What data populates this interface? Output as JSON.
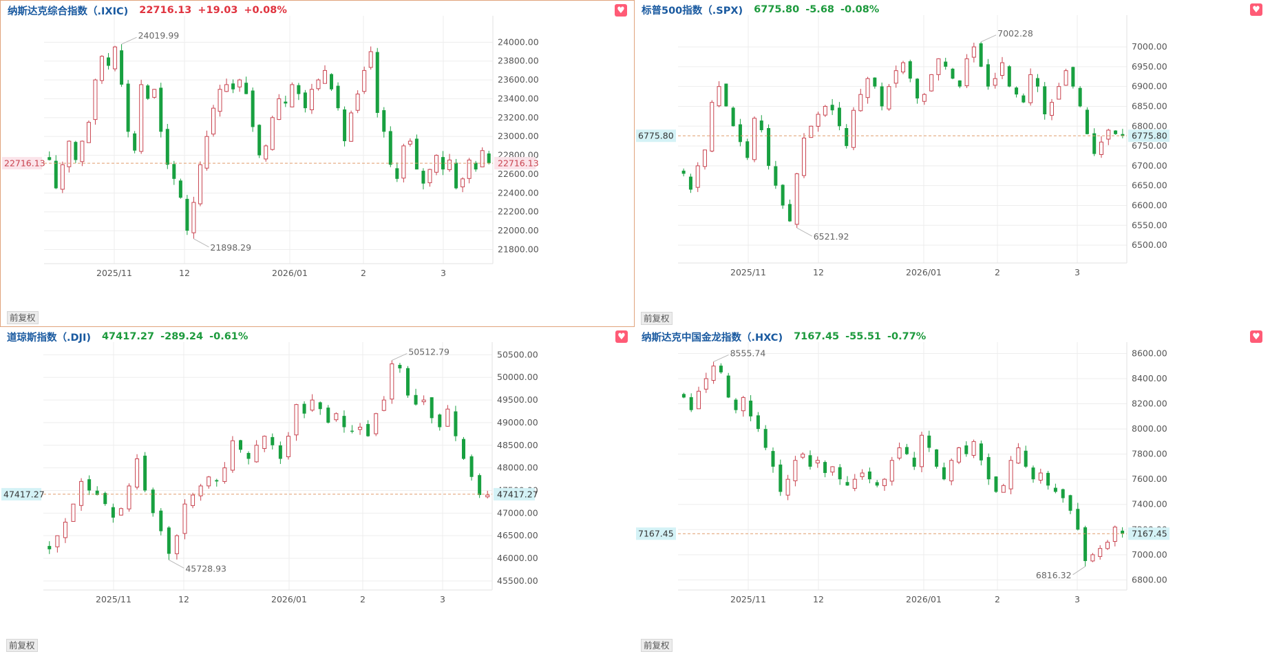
{
  "colors": {
    "up": "#c8424e",
    "down": "#18a040",
    "grid": "#ededed",
    "ref": "#e09b6a",
    "header_blue": "#1a5aa0"
  },
  "icons": {
    "favorite": "heart-icon"
  },
  "panels": [
    {
      "name": "纳斯达克综合指数（.IXIC)",
      "price": "22716.13",
      "change": "+19.03",
      "pct": "+0.08%",
      "direction": "up",
      "adjust_label": "前复权",
      "chart_data": {
        "type": "candlestick",
        "x_ticks": [
          "2025/11",
          "12",
          "2026/01",
          "2",
          "3"
        ],
        "y_ticks": [
          "24000.00",
          "23800.00",
          "23600.00",
          "23400.00",
          "23200.00",
          "23000.00",
          "22800.00",
          "22600.00",
          "22400.00",
          "22200.00",
          "22000.00",
          "21800.00"
        ],
        "ylim": [
          21650,
          24280
        ],
        "last_price": "22716.13",
        "high_annotation": "24019.99",
        "low_annotation": "21898.29",
        "grid": true,
        "path": [
          22750,
          22450,
          22700,
          22950,
          22750,
          22950,
          23150,
          23600,
          23850,
          23750,
          23950,
          23550,
          23050,
          22850,
          23550,
          23400,
          23500,
          23050,
          22700,
          22550,
          22350,
          22000,
          22300,
          22700,
          23000,
          23300,
          23500,
          23550,
          23500,
          23600,
          23450,
          23100,
          22800,
          22900,
          23200,
          23400,
          23350,
          23550,
          23450,
          23300,
          23500,
          23600,
          23700,
          23500,
          23300,
          22950,
          23250,
          23450,
          23700,
          23900,
          23250,
          23050,
          22700,
          22550,
          22900,
          22950,
          22650,
          22500,
          22650,
          22800,
          22650,
          22750,
          22450,
          22550,
          22750,
          22650,
          22850,
          22716
        ]
      }
    },
    {
      "name": "标普500指数（.SPX)",
      "price": "6775.80",
      "change": "-5.68",
      "pct": "-0.08%",
      "direction": "down",
      "adjust_label": "前复权",
      "chart_data": {
        "type": "candlestick",
        "x_ticks": [
          "2025/11",
          "12",
          "2026/01",
          "2",
          "3"
        ],
        "y_ticks": [
          "7000.00",
          "6950.00",
          "6900.00",
          "6850.00",
          "6800.00",
          "6750.00",
          "6700.00",
          "6650.00",
          "6600.00",
          "6550.00",
          "6500.00"
        ],
        "ylim": [
          6455,
          7080
        ],
        "last_price": "6775.80",
        "high_annotation": "7002.28",
        "low_annotation": "6521.92",
        "grid": true,
        "path": [
          6680,
          6640,
          6700,
          6740,
          6860,
          6900,
          6850,
          6800,
          6760,
          6720,
          6820,
          6790,
          6700,
          6650,
          6600,
          6560,
          6680,
          6770,
          6800,
          6830,
          6850,
          6840,
          6800,
          6750,
          6840,
          6880,
          6920,
          6900,
          6850,
          6900,
          6940,
          6960,
          6920,
          6870,
          6880,
          6930,
          6970,
          6950,
          6920,
          6900,
          6970,
          7000,
          6950,
          6900,
          6920,
          6960,
          6900,
          6880,
          6860,
          6930,
          6900,
          6830,
          6860,
          6900,
          6940,
          6900,
          6850,
          6780,
          6730,
          6760,
          6790,
          6780,
          6775
        ]
      }
    },
    {
      "name": "道琼斯指数（.DJI)",
      "price": "47417.27",
      "change": "-289.24",
      "pct": "-0.61%",
      "direction": "down",
      "adjust_label": "前复权",
      "chart_data": {
        "type": "candlestick",
        "x_ticks": [
          "2025/11",
          "12",
          "2026/01",
          "2",
          "3"
        ],
        "y_ticks": [
          "50500.00",
          "50000.00",
          "49500.00",
          "49000.00",
          "48500.00",
          "48000.00",
          "47500.00",
          "47000.00",
          "46500.00",
          "46000.00",
          "45500.00"
        ],
        "ylim": [
          45300,
          50780
        ],
        "last_price": "47417.27",
        "high_annotation": "50512.79",
        "low_annotation": "45728.93",
        "grid": true,
        "path": [
          46200,
          46500,
          46800,
          47200,
          47700,
          47500,
          47400,
          47200,
          46900,
          47100,
          47600,
          48200,
          47500,
          47000,
          46600,
          46100,
          46500,
          47200,
          47400,
          47600,
          47800,
          47700,
          48000,
          48600,
          48400,
          48200,
          48500,
          48700,
          48500,
          48200,
          48700,
          49400,
          49200,
          49500,
          49300,
          49000,
          49200,
          48900,
          48800,
          48900,
          48700,
          49200,
          49500,
          50300,
          50200,
          49600,
          49400,
          49500,
          49100,
          48900,
          49300,
          48700,
          48200,
          47800,
          47400,
          47400
        ]
      }
    },
    {
      "name": "纳斯达克中国金龙指数（.HXC)",
      "price": "7167.45",
      "change": "-55.51",
      "pct": "-0.77%",
      "direction": "down",
      "adjust_label": "前复权",
      "chart_data": {
        "type": "candlestick",
        "x_ticks": [
          "2025/11",
          "12",
          "2026/01",
          "2",
          "3"
        ],
        "y_ticks": [
          "8600.00",
          "8400.00",
          "8200.00",
          "8000.00",
          "7800.00",
          "7600.00",
          "7400.00",
          "7200.00",
          "7000.00",
          "6800.00"
        ],
        "ylim": [
          6720,
          8690
        ],
        "last_price": "7167.45",
        "high_annotation": "8555.74",
        "low_annotation": "6816.32",
        "grid": true,
        "path": [
          8250,
          8150,
          8300,
          8400,
          8500,
          8450,
          8250,
          8150,
          8250,
          8100,
          8000,
          7850,
          7700,
          7500,
          7600,
          7750,
          7800,
          7700,
          7750,
          7650,
          7700,
          7600,
          7550,
          7600,
          7650,
          7600,
          7550,
          7600,
          7750,
          7850,
          7800,
          7700,
          7950,
          7850,
          7700,
          7600,
          7750,
          7850,
          7800,
          7900,
          7750,
          7600,
          7500,
          7550,
          7750,
          7850,
          7700,
          7600,
          7650,
          7550,
          7500,
          7450,
          7350,
          7200,
          6950,
          7000,
          7050,
          7100,
          7220,
          7167
        ]
      }
    }
  ]
}
